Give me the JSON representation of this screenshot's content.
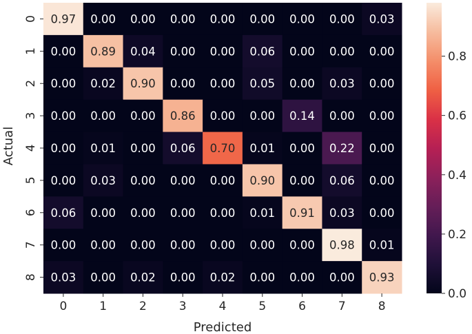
{
  "chart_data": {
    "type": "heatmap",
    "xlabel": "Predicted",
    "ylabel": "Actual",
    "x_categories": [
      "0",
      "1",
      "2",
      "3",
      "4",
      "5",
      "6",
      "7",
      "8"
    ],
    "y_categories": [
      "0",
      "1",
      "2",
      "3",
      "4",
      "5",
      "6",
      "7",
      "8"
    ],
    "values": [
      [
        0.97,
        0.0,
        0.0,
        0.0,
        0.0,
        0.0,
        0.0,
        0.0,
        0.03
      ],
      [
        0.0,
        0.89,
        0.04,
        0.0,
        0.0,
        0.06,
        0.0,
        0.0,
        0.0
      ],
      [
        0.0,
        0.02,
        0.9,
        0.0,
        0.0,
        0.05,
        0.0,
        0.03,
        0.0
      ],
      [
        0.0,
        0.0,
        0.0,
        0.86,
        0.0,
        0.0,
        0.14,
        0.0,
        0.0
      ],
      [
        0.0,
        0.01,
        0.0,
        0.06,
        0.7,
        0.01,
        0.0,
        0.22,
        0.0
      ],
      [
        0.0,
        0.03,
        0.0,
        0.0,
        0.0,
        0.9,
        0.0,
        0.06,
        0.0
      ],
      [
        0.06,
        0.0,
        0.0,
        0.0,
        0.0,
        0.01,
        0.91,
        0.03,
        0.0
      ],
      [
        0.0,
        0.0,
        0.0,
        0.0,
        0.0,
        0.0,
        0.0,
        0.98,
        0.01
      ],
      [
        0.03,
        0.0,
        0.02,
        0.0,
        0.02,
        0.0,
        0.0,
        0.0,
        0.93
      ]
    ],
    "value_format": "2-decimal",
    "colormap": "rocket",
    "colorbar": {
      "range": [
        0.0,
        0.98
      ],
      "ticks": [
        0.0,
        0.2,
        0.4,
        0.6,
        0.8
      ],
      "tick_labels": [
        "0.0",
        "0.2",
        "0.4",
        "0.6",
        "0.8"
      ],
      "placement": "right"
    },
    "grid": false
  }
}
